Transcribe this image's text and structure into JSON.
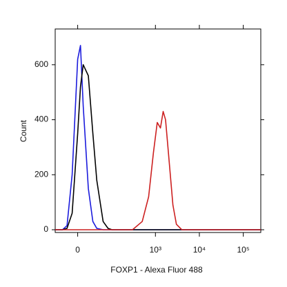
{
  "chart_data": {
    "type": "line",
    "x_label": "FOXP1 - Alexa Fluor 488",
    "y_label": "Count",
    "x": [
      -50,
      -30,
      -20,
      -10,
      0,
      5,
      10,
      20,
      30,
      40,
      60,
      80,
      100,
      130,
      160,
      200,
      300,
      500,
      700,
      900,
      1100,
      1300,
      1500,
      1700,
      2000,
      2500,
      3000,
      4000,
      6000,
      10000,
      100000,
      250000
    ],
    "series": [
      {
        "color": "#1a1adc",
        "values": [
          0,
          0,
          15,
          200,
          620,
          670,
          450,
          150,
          30,
          5,
          0,
          0,
          0,
          0,
          0,
          0,
          0,
          0,
          0,
          0,
          0,
          0,
          0,
          0,
          0,
          0,
          0,
          0,
          0,
          0,
          0,
          0
        ]
      },
      {
        "color": "#000000",
        "values": [
          0,
          0,
          5,
          60,
          350,
          520,
          600,
          560,
          350,
          180,
          30,
          5,
          0,
          0,
          0,
          0,
          0,
          0,
          0,
          0,
          0,
          0,
          0,
          0,
          0,
          0,
          0,
          0,
          0,
          0,
          0,
          0
        ]
      },
      {
        "color": "#cc1f1f",
        "values": [
          0,
          0,
          0,
          0,
          0,
          0,
          0,
          0,
          0,
          0,
          0,
          0,
          0,
          0,
          0,
          0,
          0,
          30,
          120,
          280,
          390,
          370,
          430,
          400,
          270,
          90,
          20,
          0,
          0,
          0,
          0,
          0
        ]
      }
    ],
    "xscale": "biexponential",
    "xlim": [
      -50,
      250000
    ],
    "xticks": [
      0,
      {
        "value": 1000,
        "label": "10³"
      },
      {
        "value": 10000,
        "label": "10⁴"
      },
      {
        "value": 100000,
        "label": "10⁵"
      }
    ],
    "ylim": [
      -10,
      730
    ],
    "yticks": [
      0,
      200,
      400,
      600
    ]
  }
}
